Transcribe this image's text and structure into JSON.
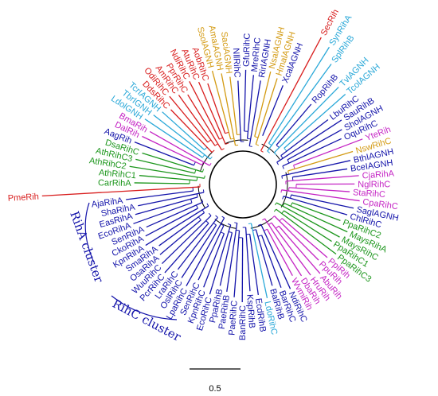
{
  "figure": {
    "colors": {
      "red": "#d81e1e",
      "blue": "#1414aa",
      "cyan": "#2aa8d8",
      "orange": "#d39a12",
      "magenta": "#c424c4",
      "green": "#1c961c",
      "black": "#000000"
    },
    "clusters": {
      "riha": "RihA cluster",
      "rihc": "RihC cluster"
    },
    "scale_bar": {
      "label": "0.5"
    },
    "leaves": [
      {
        "name": "SecRih",
        "color": "red"
      },
      {
        "name": "SynRihA",
        "color": "cyan"
      },
      {
        "name": "SplRihB",
        "color": "cyan"
      },
      {
        "name": "RopRihB",
        "color": "blue"
      },
      {
        "name": "TvlAGNH",
        "color": "cyan"
      },
      {
        "name": "TcolAGNH",
        "color": "cyan"
      },
      {
        "name": "LbuRihC",
        "color": "blue"
      },
      {
        "name": "SauRihB",
        "color": "blue"
      },
      {
        "name": "SholAGNH",
        "color": "blue"
      },
      {
        "name": "OquRihC",
        "color": "blue"
      },
      {
        "name": "YteRih",
        "color": "magenta"
      },
      {
        "name": "NswRihC",
        "color": "orange"
      },
      {
        "name": "BthIAGNH",
        "color": "blue"
      },
      {
        "name": "BceIAGNH",
        "color": "blue"
      },
      {
        "name": "CjaRihA",
        "color": "magenta"
      },
      {
        "name": "NglRihC",
        "color": "magenta"
      },
      {
        "name": "StaRihC",
        "color": "magenta"
      },
      {
        "name": "CpaRihC",
        "color": "magenta"
      },
      {
        "name": "SaglAGNH",
        "color": "blue"
      },
      {
        "name": "ChlRihC",
        "color": "blue"
      },
      {
        "name": "PpaRihC2",
        "color": "green"
      },
      {
        "name": "MaysRihA",
        "color": "green"
      },
      {
        "name": "MaysRihC",
        "color": "green"
      },
      {
        "name": "PpaRihC1",
        "color": "green"
      },
      {
        "name": "PpaRihC3",
        "color": "green"
      },
      {
        "name": "PpiRih",
        "color": "magenta"
      },
      {
        "name": "PpuRih",
        "color": "magenta"
      },
      {
        "name": "AbuRih",
        "color": "magenta"
      },
      {
        "name": "HruRih",
        "color": "magenta"
      },
      {
        "name": "DbaRih",
        "color": "magenta"
      },
      {
        "name": "WvmiRih",
        "color": "magenta"
      },
      {
        "name": "NdiRihC",
        "color": "blue"
      },
      {
        "name": "BarRihC",
        "color": "blue"
      },
      {
        "name": "BalRihB",
        "color": "blue"
      },
      {
        "name": "LdoRihC",
        "color": "cyan"
      },
      {
        "name": "EcdRihB",
        "color": "blue"
      },
      {
        "name": "KspRihB",
        "color": "blue"
      },
      {
        "name": "BanRihC",
        "color": "blue"
      },
      {
        "name": "PaeRihC",
        "color": "blue"
      },
      {
        "name": "PaeRihB",
        "color": "blue"
      },
      {
        "name": "PpaRihB",
        "color": "blue"
      },
      {
        "name": "EcoRihC",
        "color": "blue"
      },
      {
        "name": "KpnRihC",
        "color": "blue"
      },
      {
        "name": "SenRihC",
        "color": "blue"
      },
      {
        "name": "LpaRihC",
        "color": "blue"
      },
      {
        "name": "OslRihC",
        "color": "blue"
      },
      {
        "name": "LraRihC",
        "color": "blue"
      },
      {
        "name": "PcrRihC",
        "color": "blue"
      },
      {
        "name": "WuuRihC",
        "color": "blue"
      },
      {
        "name": "OsaRihA",
        "color": "blue"
      },
      {
        "name": "SmaRihA",
        "color": "blue"
      },
      {
        "name": "KpnRihA",
        "color": "blue"
      },
      {
        "name": "CkoRihA",
        "color": "blue"
      },
      {
        "name": "SenRihA",
        "color": "blue"
      },
      {
        "name": "EcoRihA",
        "color": "blue"
      },
      {
        "name": "EasRihA",
        "color": "blue"
      },
      {
        "name": "ShaRihA",
        "color": "blue"
      },
      {
        "name": "AjaRihA",
        "color": "blue"
      },
      {
        "name": "PmeRih",
        "color": "red"
      },
      {
        "name": "CarRihA",
        "color": "green"
      },
      {
        "name": "AthRihC1",
        "color": "green"
      },
      {
        "name": "AthRihC2",
        "color": "green"
      },
      {
        "name": "AthRihC3",
        "color": "green"
      },
      {
        "name": "DsaRihC",
        "color": "green"
      },
      {
        "name": "AagRih",
        "color": "blue"
      },
      {
        "name": "DalRih",
        "color": "magenta"
      },
      {
        "name": "BmaRih",
        "color": "magenta"
      },
      {
        "name": "LdolGNH",
        "color": "cyan"
      },
      {
        "name": "TbrIGNH",
        "color": "cyan"
      },
      {
        "name": "TcrIAGNH",
        "color": "cyan"
      },
      {
        "name": "DdsRihC",
        "color": "red"
      },
      {
        "name": "OdiRihC",
        "color": "red"
      },
      {
        "name": "AmRihC",
        "color": "red"
      },
      {
        "name": "PprRihC",
        "color": "red"
      },
      {
        "name": "NdiRihC",
        "color": "red"
      },
      {
        "name": "AtuRihC",
        "color": "red"
      },
      {
        "name": "AobRihC",
        "color": "red"
      },
      {
        "name": "SsolAGNH",
        "color": "orange"
      },
      {
        "name": "AmaIAGNH",
        "color": "orange"
      },
      {
        "name": "SaciAGNH",
        "color": "orange"
      },
      {
        "name": "NllRihC",
        "color": "blue"
      },
      {
        "name": "GfuRihC",
        "color": "blue"
      },
      {
        "name": "MreRihC",
        "color": "blue"
      },
      {
        "name": "RirIAGNH",
        "color": "blue"
      },
      {
        "name": "NsalAGNH",
        "color": "orange"
      },
      {
        "name": "HmalAGNH",
        "color": "orange"
      },
      {
        "name": "XcalAGNH",
        "color": "blue"
      }
    ]
  }
}
